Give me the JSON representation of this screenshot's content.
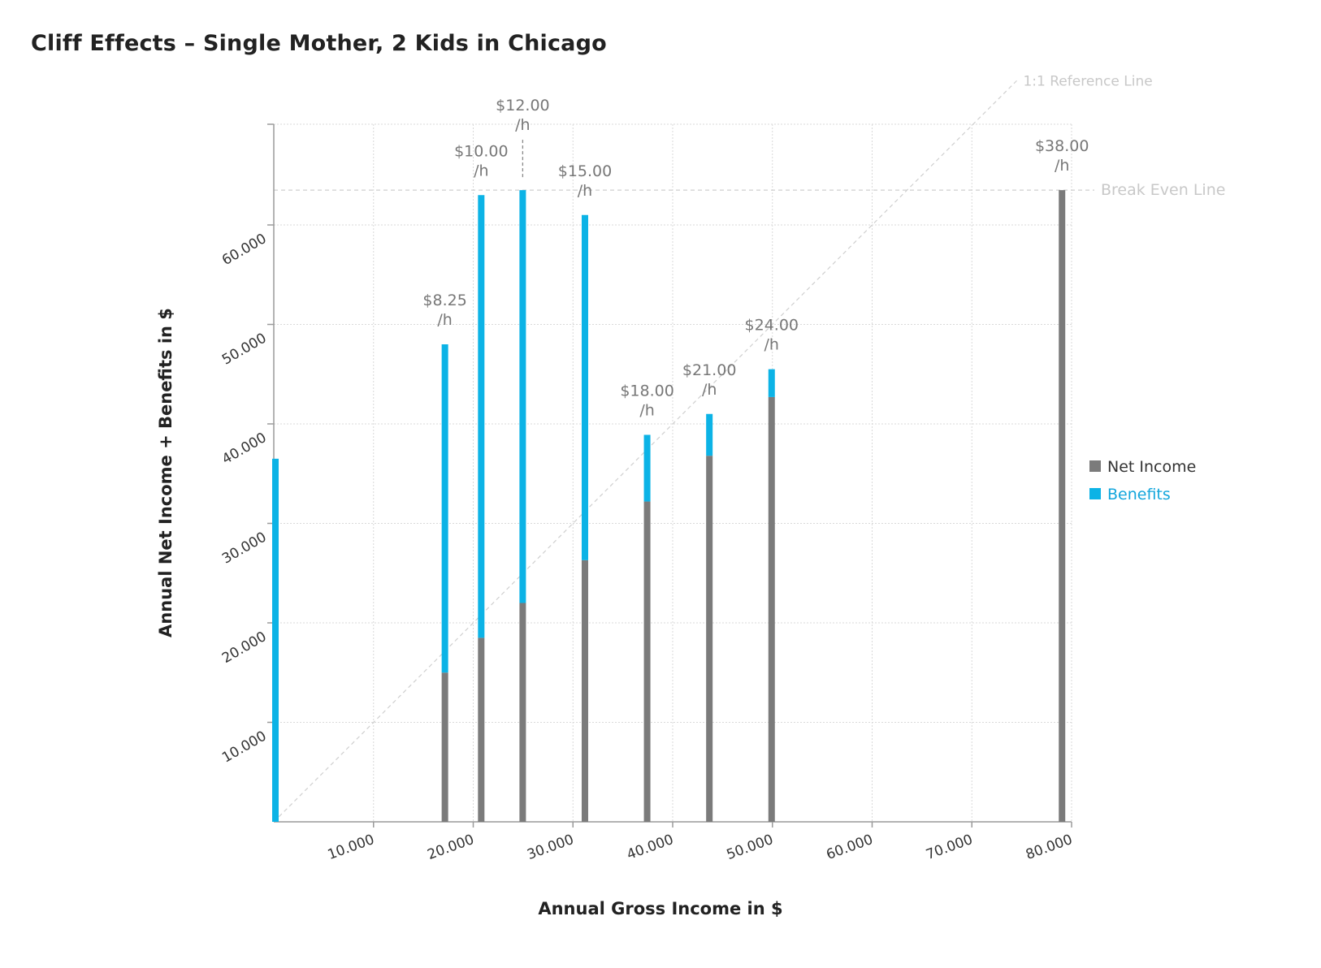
{
  "chart_data": {
    "type": "bar",
    "stacked": true,
    "title": "Cliff Effects – Single Mother, 2 Kids in Chicago",
    "xlabel": "Annual Gross Income in $",
    "ylabel": "Annual Net Income + Benefits in $",
    "xlim": [
      0,
      80000
    ],
    "ylim": [
      0,
      70000
    ],
    "xticks": [
      10000,
      20000,
      30000,
      40000,
      50000,
      60000,
      70000,
      80000
    ],
    "xtick_labels": [
      "10.000",
      "20.000",
      "30.000",
      "40.000",
      "50.000",
      "60.000",
      "70.000",
      "80.000"
    ],
    "yticks": [
      10000,
      20000,
      30000,
      40000,
      50000,
      60000
    ],
    "ytick_labels": [
      "10.000",
      "20.000",
      "30.000",
      "40.000",
      "50.000",
      "60.000"
    ],
    "grid": true,
    "legend_position": "right",
    "colors": {
      "net_income": "#7b7b7b",
      "benefits": "#0cb3e6",
      "legend_benefits_text": "#13a6dc",
      "grid": "#d9d9d9",
      "reference": "#cfcfcf",
      "labels": "#777777"
    },
    "series": [
      {
        "name": "Net Income",
        "key": "net",
        "color": "#7b7b7b"
      },
      {
        "name": "Benefits",
        "key": "benefits",
        "color": "#0cb3e6"
      }
    ],
    "bars": [
      {
        "gross": 0,
        "net": 0,
        "benefits": 36500,
        "wage": ""
      },
      {
        "gross": 17160,
        "net": 15000,
        "benefits": 33000,
        "wage": "$8.25",
        "unit": "/h"
      },
      {
        "gross": 20800,
        "net": 18500,
        "benefits": 44500,
        "wage": "$10.00",
        "unit": "/h"
      },
      {
        "gross": 24960,
        "net": 22000,
        "benefits": 41500,
        "wage": "$12.00",
        "unit": "/h"
      },
      {
        "gross": 31200,
        "net": 26300,
        "benefits": 34700,
        "wage": "$15.00",
        "unit": "/h"
      },
      {
        "gross": 37440,
        "net": 32200,
        "benefits": 6700,
        "wage": "$18.00",
        "unit": "/h"
      },
      {
        "gross": 43680,
        "net": 36800,
        "benefits": 4200,
        "wage": "$21.00",
        "unit": "/h"
      },
      {
        "gross": 49920,
        "net": 42700,
        "benefits": 2800,
        "wage": "$24.00",
        "unit": "/h"
      },
      {
        "gross": 79040,
        "net": 63500,
        "benefits": 0,
        "wage": "$38.00",
        "unit": "/h"
      }
    ],
    "reference_lines": [
      {
        "name": "1:1 Reference Line",
        "type": "diagonal"
      },
      {
        "name": "Break Even Line",
        "type": "horizontal",
        "value": 63500
      }
    ]
  }
}
